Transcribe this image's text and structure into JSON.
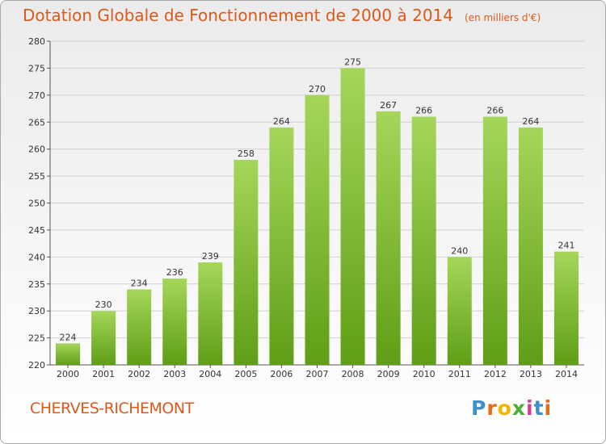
{
  "header": {
    "title": "Dotation Globale de Fonctionnement de 2000 à 2014",
    "unit": "(en milliers d'€)"
  },
  "footer": {
    "commune": "CHERVES-RICHEMONT",
    "logo_text": "Proxiti"
  },
  "colors": {
    "bar_top": "#a5d65a",
    "bar_bottom": "#5f9e16",
    "title": "#d95a1c"
  },
  "chart_data": {
    "type": "bar",
    "title": "Dotation Globale de Fonctionnement de 2000 à 2014",
    "subtitle": "(en milliers d'€)",
    "categories": [
      "2000",
      "2001",
      "2002",
      "2003",
      "2004",
      "2005",
      "2006",
      "2007",
      "2008",
      "2009",
      "2010",
      "2011",
      "2012",
      "2013",
      "2014"
    ],
    "values": [
      224,
      230,
      234,
      236,
      239,
      258,
      264,
      270,
      275,
      267,
      266,
      240,
      266,
      264,
      241
    ],
    "ylim": [
      220,
      280
    ],
    "yticks": [
      220,
      225,
      230,
      235,
      240,
      245,
      250,
      255,
      260,
      265,
      270,
      275,
      280
    ],
    "grid": true,
    "legend": "none"
  }
}
